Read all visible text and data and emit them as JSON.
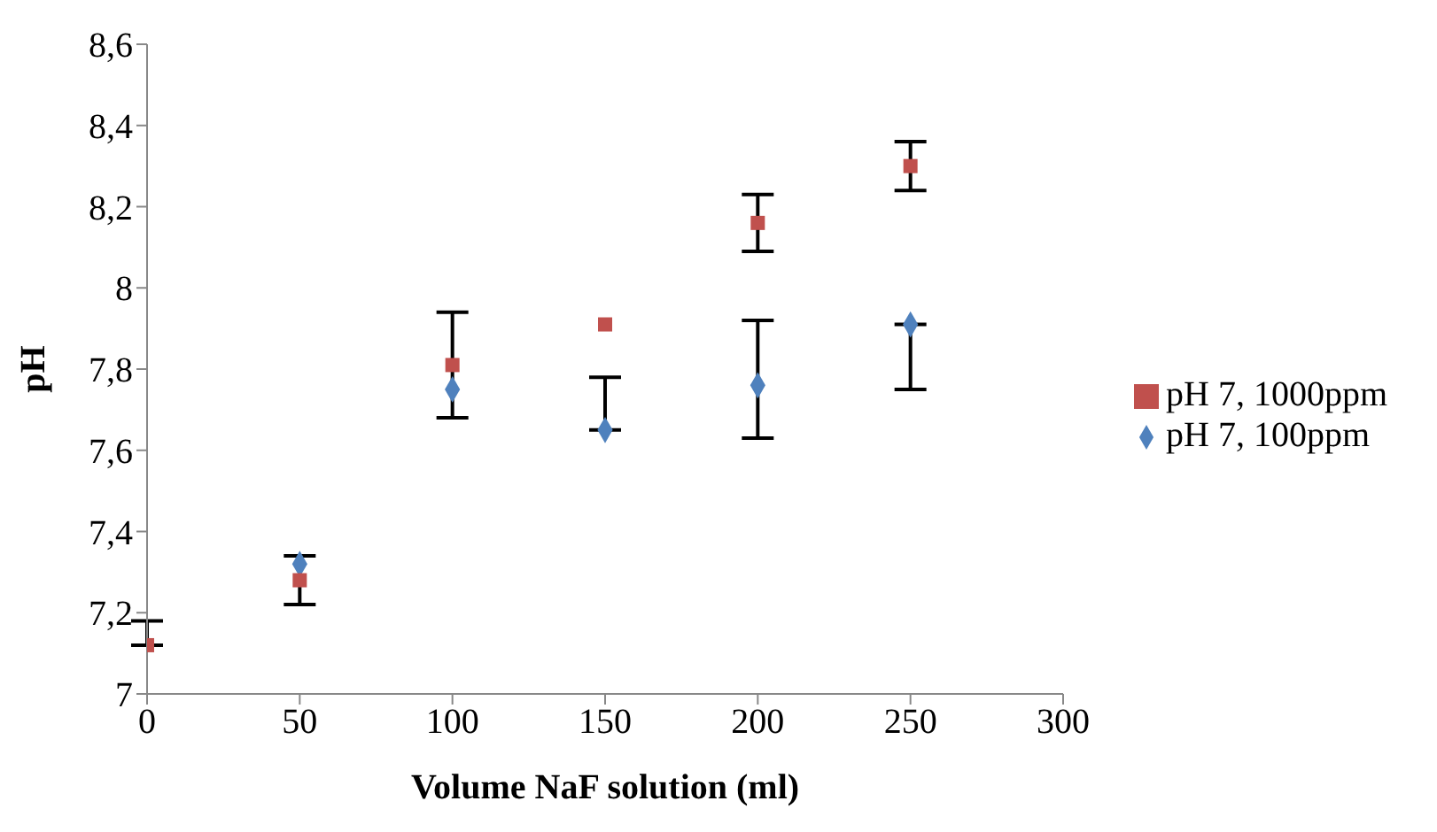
{
  "chart_data": {
    "type": "scatter",
    "xlabel": "Volume NaF solution (ml)",
    "ylabel": "pH",
    "x": [
      0,
      50,
      100,
      150,
      200,
      250
    ],
    "series": [
      {
        "name": "pH 7, 100ppm",
        "color": "#4f81bd",
        "marker": "diamond",
        "values": [
          null,
          7.32,
          7.75,
          7.65,
          7.76,
          7.91
        ],
        "errors": [
          null,
          null,
          null,
          [
            7.65,
            7.78
          ],
          [
            7.63,
            7.92
          ],
          [
            7.75,
            7.91
          ]
        ]
      },
      {
        "name": "pH 7, 1000ppm",
        "color": "#c0504d",
        "marker": "square",
        "values": [
          7.12,
          7.28,
          7.81,
          7.91,
          8.16,
          8.3
        ],
        "errors": [
          [
            7.12,
            7.18
          ],
          [
            7.22,
            7.34
          ],
          [
            7.68,
            7.94
          ],
          null,
          [
            8.09,
            8.23
          ],
          [
            8.24,
            8.36
          ]
        ]
      }
    ],
    "xlim": [
      0,
      300
    ],
    "xticks": [
      0,
      50,
      100,
      150,
      200,
      250,
      300
    ],
    "ylim": [
      7,
      8.6
    ],
    "yticks": [
      7,
      {
        "value": 7.2,
        "label": "7,2"
      },
      {
        "value": 7.4,
        "label": "7,4"
      },
      {
        "value": 7.6,
        "label": "7,6"
      },
      {
        "value": 7.8,
        "label": "7,8"
      },
      8,
      {
        "value": 8.2,
        "label": "8,2"
      },
      {
        "value": 8.4,
        "label": "8,4"
      },
      {
        "value": 8.6,
        "label": "8,6"
      }
    ],
    "grid": false,
    "legend": "right"
  }
}
